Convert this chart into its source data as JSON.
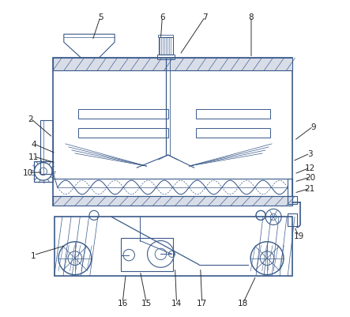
{
  "bg_color": "#ffffff",
  "line_color": "#3a5a8a",
  "label_color": "#222222",
  "figsize": [
    4.43,
    4.02
  ],
  "dpi": 100,
  "label_positions": {
    "1": [
      0.055,
      0.195,
      0.155,
      0.225
    ],
    "2": [
      0.045,
      0.625,
      0.115,
      0.565
    ],
    "3": [
      0.925,
      0.515,
      0.87,
      0.49
    ],
    "4": [
      0.055,
      0.545,
      0.125,
      0.515
    ],
    "5": [
      0.265,
      0.945,
      0.24,
      0.87
    ],
    "6": [
      0.46,
      0.945,
      0.455,
      0.875
    ],
    "7": [
      0.595,
      0.945,
      0.515,
      0.825
    ],
    "8": [
      0.74,
      0.945,
      0.74,
      0.815
    ],
    "9": [
      0.935,
      0.6,
      0.875,
      0.555
    ],
    "10": [
      0.038,
      0.455,
      0.085,
      0.455
    ],
    "11": [
      0.055,
      0.505,
      0.125,
      0.485
    ],
    "12": [
      0.925,
      0.47,
      0.875,
      0.45
    ],
    "14": [
      0.505,
      0.045,
      0.5,
      0.155
    ],
    "15": [
      0.41,
      0.045,
      0.39,
      0.145
    ],
    "16": [
      0.335,
      0.045,
      0.345,
      0.135
    ],
    "17": [
      0.585,
      0.045,
      0.58,
      0.155
    ],
    "18": [
      0.715,
      0.045,
      0.755,
      0.13
    ],
    "19": [
      0.89,
      0.255,
      0.875,
      0.285
    ],
    "20": [
      0.925,
      0.44,
      0.875,
      0.425
    ],
    "21": [
      0.925,
      0.405,
      0.875,
      0.39
    ]
  }
}
